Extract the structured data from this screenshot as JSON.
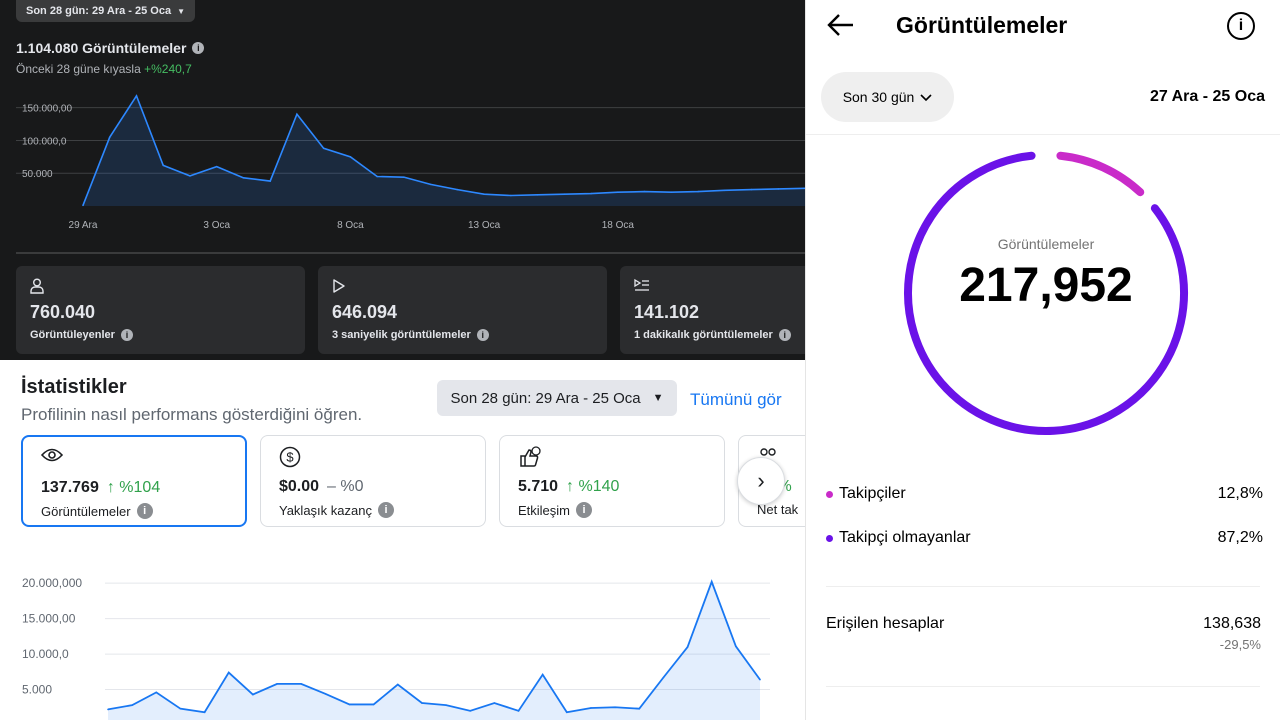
{
  "colors": {
    "fb_blue": "#1877f2",
    "positive_green": "#31a24c",
    "ig_purple": "#6a12e8",
    "ig_pink": "#c92bc9"
  },
  "dark_panel": {
    "range_label": "Son 28 gün: 29 Ara - 25 Oca",
    "total_label": "1.104.080 Görüntülemeler",
    "compare_text": "Önceki 28 güne kıyasla",
    "compare_change": "+%240,7",
    "cards": [
      {
        "icon": "person-icon",
        "value": "760.040",
        "label": "Görüntüleyenler"
      },
      {
        "icon": "play-icon",
        "value": "646.094",
        "label": "3 saniyelik görüntülemeler"
      },
      {
        "icon": "playlist-icon",
        "value": "141.102",
        "label": "1 dakikalık görüntülemeler"
      }
    ]
  },
  "light_panel": {
    "title": "İstatistikler",
    "subtitle": "Profilinin nasıl performans gösterdiğini öğren.",
    "range_button": "Son 28 gün: 29 Ara - 25 Oca",
    "see_all": "Tümünü gör",
    "metrics": [
      {
        "icon": "eye-icon",
        "value": "137.769",
        "change": "↑ %104",
        "label": "Görüntülemeler"
      },
      {
        "icon": "dollar-icon",
        "value": "$0.00",
        "change": "– %0",
        "label": "Yaklaşık kazanç"
      },
      {
        "icon": "engagement-icon",
        "value": "5.710",
        "change": "↑ %140",
        "label": "Etkileşim"
      },
      {
        "icon": "people-icon",
        "value": "",
        "change": "↑ %",
        "label": "Net tak"
      }
    ]
  },
  "mobile_panel": {
    "title": "Görüntülemeler",
    "range_pill": "Son 30 gün",
    "dates": "27 Ara - 25 Oca",
    "ring_label": "Görüntülemeler",
    "ring_value": "217,952",
    "legend": [
      {
        "label": "Takipçiler",
        "value": "12,8%",
        "fraction": 0.128,
        "color": "#c92bc9"
      },
      {
        "label": "Takipçi olmayanlar",
        "value": "87,2%",
        "fraction": 0.872,
        "color": "#6a12e8"
      }
    ],
    "reach_label": "Erişilen hesaplar",
    "reach_value": "138,638",
    "reach_change": "-29,5%"
  },
  "chart_data": [
    {
      "type": "area",
      "title": "",
      "x": [
        "29 Ara",
        "30 Ara",
        "31 Ara",
        "1 Oca",
        "2 Oca",
        "3 Oca",
        "4 Oca",
        "5 Oca",
        "6 Oca",
        "7 Oca",
        "8 Oca",
        "9 Oca",
        "10 Oca",
        "11 Oca",
        "12 Oca",
        "13 Oca",
        "14 Oca",
        "15 Oca",
        "16 Oca",
        "17 Oca",
        "18 Oca",
        "19 Oca",
        "20 Oca",
        "21 Oca",
        "22 Oca",
        "23 Oca",
        "24 Oca",
        "25 Oca"
      ],
      "xticks": [
        "29 Ara",
        "3 Oca",
        "8 Oca",
        "13 Oca",
        "18 Oca"
      ],
      "values": [
        1000,
        105000,
        168000,
        62000,
        46000,
        60000,
        43000,
        38000,
        140000,
        88000,
        75000,
        45000,
        44000,
        33000,
        25000,
        18000,
        16000,
        17000,
        18000,
        19000,
        21000,
        22000,
        21000,
        22000,
        24000,
        25000,
        26000,
        27000
      ],
      "yticks": [
        "50.000",
        "100.000,0",
        "150.000,00"
      ],
      "ylim": [
        0,
        180000
      ],
      "grid": true
    },
    {
      "type": "area",
      "title": "",
      "values": [
        2200000,
        2800000,
        4600000,
        2300000,
        1800000,
        7400000,
        4300000,
        5800000,
        5800000,
        4400000,
        2900000,
        2900000,
        5700000,
        3100000,
        2800000,
        2000000,
        3100000,
        2000000,
        7100000,
        1800000,
        2400000,
        2500000,
        2300000,
        6700000,
        11000000,
        20200000,
        11100000,
        6400000
      ],
      "yticks": [
        "5.000",
        "10.000,0",
        "15.000,00",
        "20.000,000"
      ],
      "ylim": [
        0,
        22000000
      ],
      "grid": true
    }
  ]
}
